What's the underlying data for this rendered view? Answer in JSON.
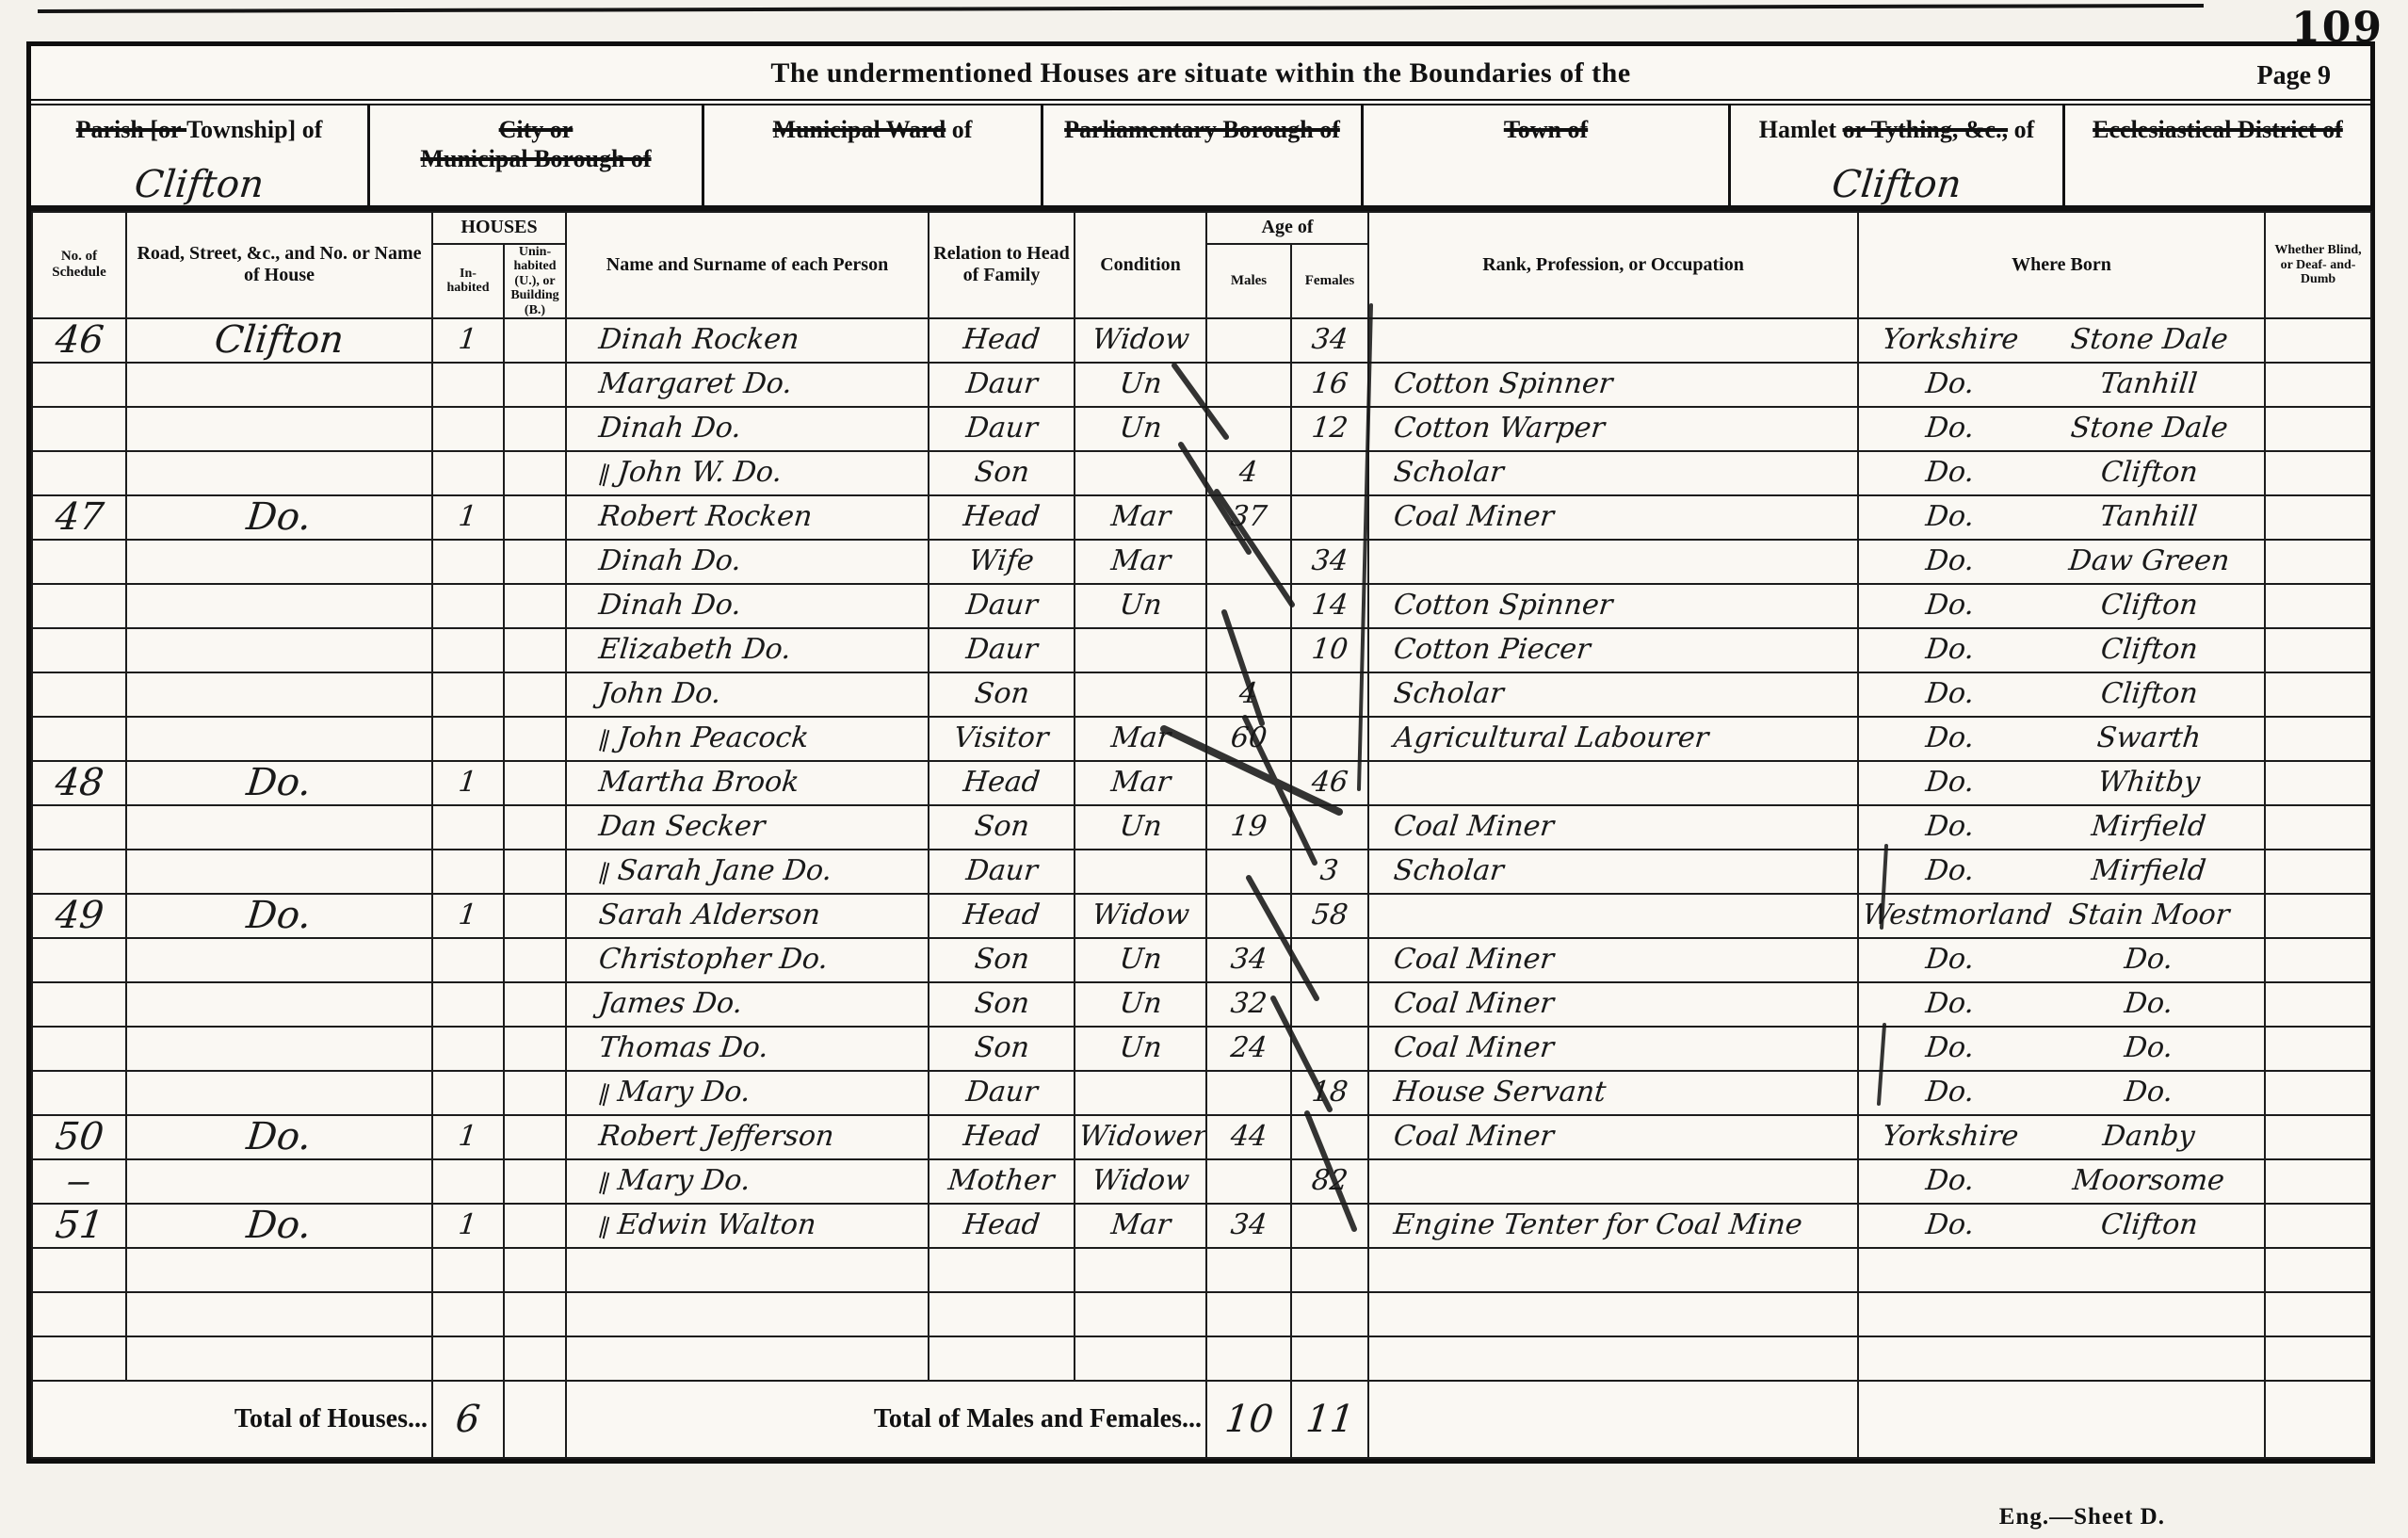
{
  "page": {
    "corner_number": "109",
    "page_label": "Page 9",
    "title": "The undermentioned Houses are situate within the Boundaries of the",
    "footer_caption": "Eng.—Sheet D."
  },
  "location_headers": [
    {
      "name": "parish",
      "lines": [
        [
          {
            "t": "Parish [or ",
            "s": true
          },
          {
            "t": "Township] of",
            "s": false
          }
        ]
      ],
      "written": "Clifton"
    },
    {
      "name": "city-borough",
      "lines": [
        [
          {
            "t": "City or",
            "s": true
          }
        ],
        [
          {
            "t": "Municipal Borough of",
            "s": true
          }
        ]
      ],
      "written": ""
    },
    {
      "name": "municipal-ward",
      "lines": [
        [
          {
            "t": "Municipal Ward",
            "s": true
          },
          {
            "t": " of",
            "s": false
          }
        ]
      ],
      "written": ""
    },
    {
      "name": "parliamentary-borough",
      "lines": [
        [
          {
            "t": "Parliamentary Borough of",
            "s": true
          }
        ]
      ],
      "written": ""
    },
    {
      "name": "town",
      "lines": [
        [
          {
            "t": "Town of",
            "s": true
          }
        ]
      ],
      "written": ""
    },
    {
      "name": "hamlet",
      "lines": [
        [
          {
            "t": "Hamlet ",
            "s": false
          },
          {
            "t": "or Tything, &c.,",
            "s": true
          },
          {
            "t": " of",
            "s": false
          }
        ]
      ],
      "written": "Clifton"
    },
    {
      "name": "ecclesiastical-district",
      "lines": [
        [
          {
            "t": "Ecclesiastical District of",
            "s": true
          }
        ]
      ],
      "written": ""
    }
  ],
  "table": {
    "headers": {
      "schedule": "No. of Schedule",
      "road": "Road, Street, &c., and No. or Name of House",
      "houses_group": "HOUSES",
      "inhabited": "In- habited",
      "uninhabited": "Unin- habited (U.), or Building (B.)",
      "name": "Name and Surname of each Person",
      "relation": "Relation to Head of Family",
      "condition": "Condition",
      "age_group": "Age of",
      "males": "Males",
      "females": "Females",
      "occupation": "Rank, Profession, or Occupation",
      "born": "Where Born",
      "infirm": "Whether Blind, or Deaf- and-Dumb"
    },
    "rows": [
      {
        "schedule": "46",
        "road": "Clifton",
        "inhabited": "1",
        "uninhabited": "",
        "tick": false,
        "name": "Dinah Rocken",
        "relation": "Head",
        "condition": "Widow",
        "age_m": "",
        "age_f": "34",
        "occupation": "",
        "born_county": "Yorkshire",
        "born_place": "Stone Dale",
        "infirm": ""
      },
      {
        "schedule": "",
        "road": "",
        "inhabited": "",
        "uninhabited": "",
        "tick": false,
        "name": "Margaret Do.",
        "relation": "Daur",
        "condition": "Un",
        "age_m": "",
        "age_f": "16",
        "occupation": "Cotton Spinner",
        "born_county": "Do.",
        "born_place": "Tanhill",
        "infirm": ""
      },
      {
        "schedule": "",
        "road": "",
        "inhabited": "",
        "uninhabited": "",
        "tick": false,
        "name": "Dinah Do.",
        "relation": "Daur",
        "condition": "Un",
        "age_m": "",
        "age_f": "12",
        "occupation": "Cotton Warper",
        "born_county": "Do.",
        "born_place": "Stone Dale",
        "infirm": ""
      },
      {
        "schedule": "",
        "road": "",
        "inhabited": "",
        "uninhabited": "",
        "tick": true,
        "name": "John W. Do.",
        "relation": "Son",
        "condition": "",
        "age_m": "4",
        "age_f": "",
        "occupation": "Scholar",
        "born_county": "Do.",
        "born_place": "Clifton",
        "infirm": ""
      },
      {
        "schedule": "47",
        "road": "Do.",
        "inhabited": "1",
        "uninhabited": "",
        "tick": false,
        "name": "Robert Rocken",
        "relation": "Head",
        "condition": "Mar",
        "age_m": "37",
        "age_f": "",
        "occupation": "Coal Miner",
        "born_county": "Do.",
        "born_place": "Tanhill",
        "infirm": ""
      },
      {
        "schedule": "",
        "road": "",
        "inhabited": "",
        "uninhabited": "",
        "tick": false,
        "name": "Dinah Do.",
        "relation": "Wife",
        "condition": "Mar",
        "age_m": "",
        "age_f": "34",
        "occupation": "",
        "born_county": "Do.",
        "born_place": "Daw Green",
        "infirm": ""
      },
      {
        "schedule": "",
        "road": "",
        "inhabited": "",
        "uninhabited": "",
        "tick": false,
        "name": "Dinah Do.",
        "relation": "Daur",
        "condition": "Un",
        "age_m": "",
        "age_f": "14",
        "occupation": "Cotton Spinner",
        "born_county": "Do.",
        "born_place": "Clifton",
        "infirm": ""
      },
      {
        "schedule": "",
        "road": "",
        "inhabited": "",
        "uninhabited": "",
        "tick": false,
        "name": "Elizabeth Do.",
        "relation": "Daur",
        "condition": "",
        "age_m": "",
        "age_f": "10",
        "occupation": "Cotton Piecer",
        "born_county": "Do.",
        "born_place": "Clifton",
        "infirm": ""
      },
      {
        "schedule": "",
        "road": "",
        "inhabited": "",
        "uninhabited": "",
        "tick": false,
        "name": "John Do.",
        "relation": "Son",
        "condition": "",
        "age_m": "4",
        "age_f": "",
        "occupation": "Scholar",
        "born_county": "Do.",
        "born_place": "Clifton",
        "infirm": ""
      },
      {
        "schedule": "",
        "road": "",
        "inhabited": "",
        "uninhabited": "",
        "tick": true,
        "name": "John Peacock",
        "relation": "Visitor",
        "condition": "Mar",
        "age_m": "60",
        "age_f": "",
        "occupation": "Agricultural Labourer",
        "born_county": "Do.",
        "born_place": "Swarth",
        "infirm": ""
      },
      {
        "schedule": "48",
        "road": "Do.",
        "inhabited": "1",
        "uninhabited": "",
        "tick": false,
        "name": "Martha Brook",
        "relation": "Head",
        "condition": "Mar",
        "age_m": "",
        "age_f": "46",
        "occupation": "",
        "born_county": "Do.",
        "born_place": "Whitby",
        "infirm": ""
      },
      {
        "schedule": "",
        "road": "",
        "inhabited": "",
        "uninhabited": "",
        "tick": false,
        "name": "Dan Secker",
        "relation": "Son",
        "condition": "Un",
        "age_m": "19",
        "age_f": "",
        "occupation": "Coal Miner",
        "born_county": "Do.",
        "born_place": "Mirfield",
        "infirm": ""
      },
      {
        "schedule": "",
        "road": "",
        "inhabited": "",
        "uninhabited": "",
        "tick": true,
        "name": "Sarah Jane Do.",
        "relation": "Daur",
        "condition": "",
        "age_m": "",
        "age_f": "3",
        "occupation": "Scholar",
        "born_county": "Do.",
        "born_place": "Mirfield",
        "infirm": ""
      },
      {
        "schedule": "49",
        "road": "Do.",
        "inhabited": "1",
        "uninhabited": "",
        "tick": false,
        "name": "Sarah Alderson",
        "relation": "Head",
        "condition": "Widow",
        "age_m": "",
        "age_f": "58",
        "occupation": "",
        "born_county": "Westmorland",
        "born_place": "Stain Moor",
        "infirm": ""
      },
      {
        "schedule": "",
        "road": "",
        "inhabited": "",
        "uninhabited": "",
        "tick": false,
        "name": "Christopher Do.",
        "relation": "Son",
        "condition": "Un",
        "age_m": "34",
        "age_f": "",
        "occupation": "Coal Miner",
        "born_county": "Do.",
        "born_place": "Do.",
        "infirm": ""
      },
      {
        "schedule": "",
        "road": "",
        "inhabited": "",
        "uninhabited": "",
        "tick": false,
        "name": "James Do.",
        "relation": "Son",
        "condition": "Un",
        "age_m": "32",
        "age_f": "",
        "occupation": "Coal Miner",
        "born_county": "Do.",
        "born_place": "Do.",
        "infirm": ""
      },
      {
        "schedule": "",
        "road": "",
        "inhabited": "",
        "uninhabited": "",
        "tick": false,
        "name": "Thomas Do.",
        "relation": "Son",
        "condition": "Un",
        "age_m": "24",
        "age_f": "",
        "occupation": "Coal Miner",
        "born_county": "Do.",
        "born_place": "Do.",
        "infirm": ""
      },
      {
        "schedule": "",
        "road": "",
        "inhabited": "",
        "uninhabited": "",
        "tick": true,
        "name": "Mary Do.",
        "relation": "Daur",
        "condition": "",
        "age_m": "",
        "age_f": "18",
        "occupation": "House Servant",
        "born_county": "Do.",
        "born_place": "Do.",
        "infirm": ""
      },
      {
        "schedule": "50",
        "road": "Do.",
        "inhabited": "1",
        "uninhabited": "",
        "tick": false,
        "name": "Robert Jefferson",
        "relation": "Head",
        "condition": "Widower",
        "age_m": "44",
        "age_f": "",
        "occupation": "Coal Miner",
        "born_county": "Yorkshire",
        "born_place": "Danby",
        "infirm": ""
      },
      {
        "schedule": "‒",
        "road": "",
        "inhabited": "",
        "uninhabited": "",
        "tick": true,
        "name": "Mary Do.",
        "relation": "Mother",
        "condition": "Widow",
        "age_m": "",
        "age_f": "82",
        "occupation": "",
        "born_county": "Do.",
        "born_place": "Moorsome",
        "infirm": ""
      },
      {
        "schedule": "51",
        "road": "Do.",
        "inhabited": "1",
        "uninhabited": "",
        "tick": true,
        "name": "Edwin Walton",
        "relation": "Head",
        "condition": "Mar",
        "age_m": "34",
        "age_f": "",
        "occupation": "Engine Tenter for Coal Mine",
        "born_county": "Do.",
        "born_place": "Clifton",
        "infirm": ""
      }
    ],
    "empty_row_count": 3,
    "footer": {
      "houses_label": "Total of Houses...",
      "houses_total": "6",
      "persons_label": "Total of Males and Females...",
      "males_total": "10",
      "females_total": "11"
    }
  }
}
